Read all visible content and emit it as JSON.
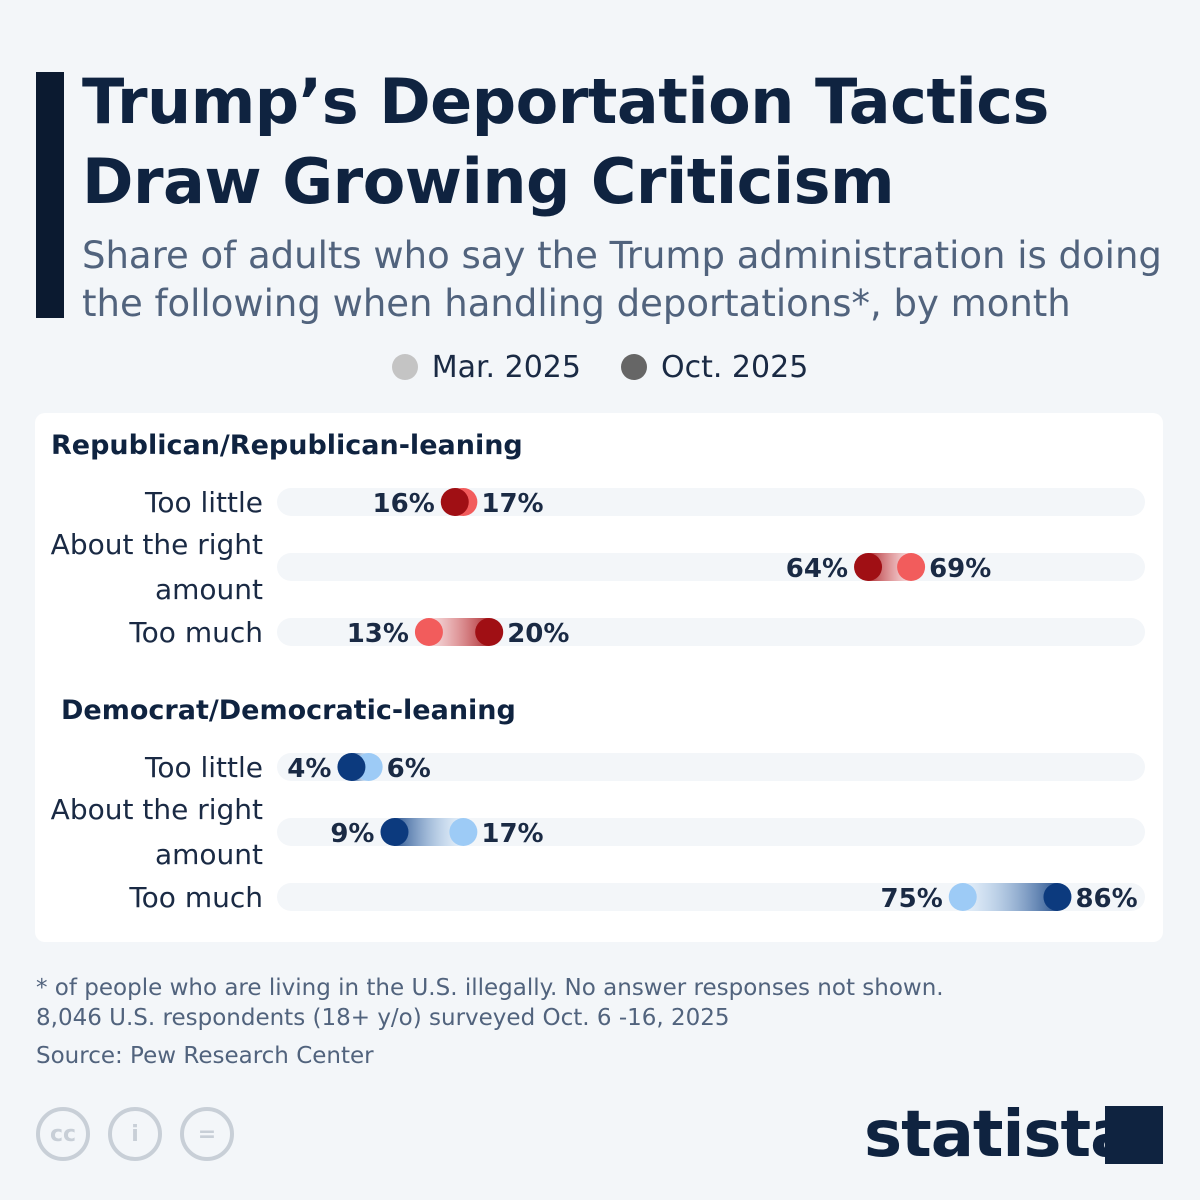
{
  "title_lines": [
    "Trump’s Deportation Tactics",
    "Draw Growing Criticism"
  ],
  "subtitle": "Share of adults who say the Trump administration is doing the following when handling deportations*, by month",
  "chart_data": {
    "type": "dumbbell",
    "unit": "%",
    "legend": [
      {
        "name": "Mar. 2025",
        "color": "#c4c4c4"
      },
      {
        "name": "Oct. 2025",
        "color": "#666666"
      }
    ],
    "groups": [
      {
        "name": "Republican/Republican-leaning",
        "colors": {
          "mar": "#f25c5c",
          "oct": "#a00f14"
        },
        "rows": [
          {
            "label": "Too little",
            "mar": 17,
            "oct": 16
          },
          {
            "label": "About the right amount",
            "mar": 69,
            "oct": 64
          },
          {
            "label": "Too much",
            "mar": 13,
            "oct": 20
          }
        ]
      },
      {
        "name": "Democrat/Democratic-leaning",
        "colors": {
          "mar": "#9dcbf6",
          "oct": "#0c3a7e"
        },
        "rows": [
          {
            "label": "Too little",
            "mar": 6,
            "oct": 4
          },
          {
            "label": "About the right amount",
            "mar": 17,
            "oct": 9
          },
          {
            "label": "Too much",
            "mar": 75,
            "oct": 86
          }
        ]
      }
    ],
    "xlim": [
      0,
      100
    ]
  },
  "footnote": [
    "* of people who are living in the U.S. illegally. No answer responses not shown.",
    "8,046 U.S. respondents (18+ y/o) surveyed Oct. 6 -16, 2025"
  ],
  "source": "Source: Pew Research Center",
  "logo": "statista"
}
